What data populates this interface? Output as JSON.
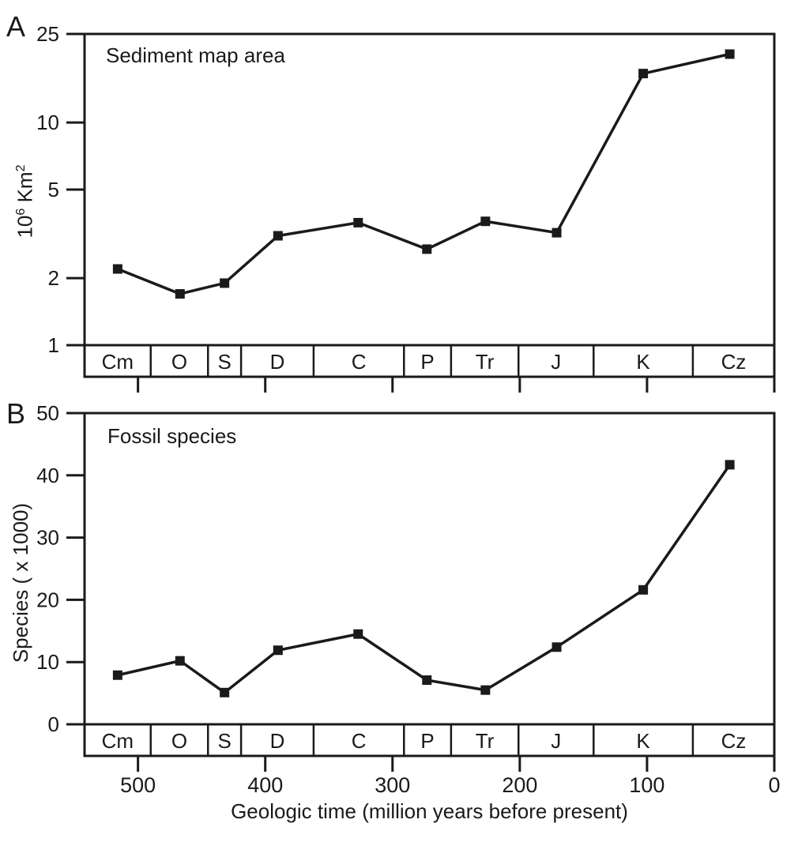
{
  "figure": {
    "colors": {
      "ink": "#1a1a1a",
      "background": "#ffffff"
    },
    "panels": [
      {
        "letter": "A",
        "title": "Sediment map area",
        "y_label_text": "10⁶ Km²",
        "y_label_parts": [
          [
            "10",
            false
          ],
          [
            "6",
            true
          ],
          [
            " Km",
            false
          ],
          [
            "2",
            true
          ]
        ]
      },
      {
        "letter": "B",
        "title": "Fossil species",
        "y_label_text": "Species ( x 1000)",
        "y_label_parts": [
          [
            "Species ( x 1000)",
            false
          ]
        ]
      }
    ],
    "period_band": {
      "labels": [
        "Cm",
        "O",
        "S",
        "D",
        "C",
        "P",
        "Tr",
        "J",
        "K",
        "Cz"
      ],
      "boundaries_myr": [
        542,
        490,
        445,
        419,
        362,
        291,
        254,
        201,
        142,
        64,
        0
      ]
    },
    "x_axis": {
      "title": "Geologic time (million years before present)",
      "tick_values": [
        500,
        400,
        300,
        200,
        100,
        0
      ]
    }
  },
  "chart_data": [
    {
      "type": "line",
      "panel": "A",
      "title": "Sediment map area",
      "ylabel": "10⁶ Km²",
      "xlabel": "Geologic time (million years before present)",
      "y_scale": "log",
      "ylim": [
        1,
        25
      ],
      "y_ticks": [
        25,
        10,
        5,
        2,
        1
      ],
      "marker": "filled-square",
      "line_color": "#1a1a1a",
      "grid": false,
      "legend": "none",
      "categories": [
        "Cm",
        "O",
        "S",
        "D",
        "C",
        "P",
        "Tr",
        "J",
        "K",
        "Cz"
      ],
      "x_myr": [
        516,
        467,
        432,
        390,
        327,
        273,
        227,
        171,
        103,
        35
      ],
      "values": [
        2.2,
        1.7,
        1.9,
        3.1,
        3.55,
        2.7,
        3.6,
        3.2,
        16.6,
        20.3
      ]
    },
    {
      "type": "line",
      "panel": "B",
      "title": "Fossil species",
      "ylabel": "Species ( x 1000)",
      "xlabel": "Geologic time (million years before present)",
      "y_scale": "linear",
      "ylim": [
        0,
        50
      ],
      "y_ticks": [
        50,
        40,
        30,
        20,
        10,
        0
      ],
      "marker": "filled-square",
      "line_color": "#1a1a1a",
      "grid": false,
      "legend": "none",
      "categories": [
        "Cm",
        "O",
        "S",
        "D",
        "C",
        "P",
        "Tr",
        "J",
        "K",
        "Cz"
      ],
      "x_myr": [
        516,
        467,
        432,
        390,
        327,
        273,
        227,
        171,
        103,
        35
      ],
      "values": [
        7.9,
        10.2,
        5.1,
        11.9,
        14.5,
        7.1,
        5.5,
        12.4,
        21.6,
        41.7
      ]
    }
  ]
}
